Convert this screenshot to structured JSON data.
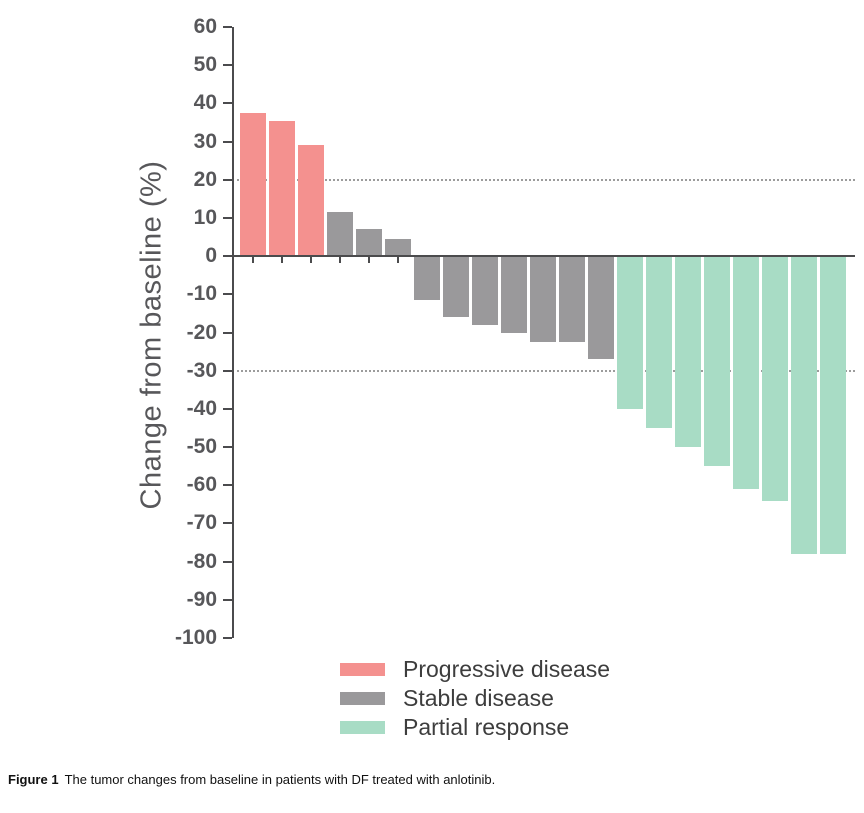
{
  "figure": {
    "caption_label": "Figure 1",
    "caption_text": "The tumor changes from baseline in patients with DF treated with anlotinib."
  },
  "chart_data": {
    "type": "bar",
    "chart_style": "waterfall",
    "title": "",
    "xlabel": "",
    "ylabel": "Change from baseline (%)",
    "ylim": [
      -100,
      60
    ],
    "yticks": [
      60,
      50,
      40,
      30,
      20,
      10,
      0,
      -10,
      -20,
      -30,
      -40,
      -50,
      -60,
      -70,
      -80,
      -90,
      -100
    ],
    "thresholds": [
      20,
      -30
    ],
    "grid": false,
    "legend_position": "bottom",
    "groups": [
      {
        "name": "Progressive disease",
        "color": "#F4918F"
      },
      {
        "name": "Stable disease",
        "color": "#9A999B"
      },
      {
        "name": "Partial response",
        "color": "#A8DCC5"
      }
    ],
    "bars": [
      {
        "value": 37.5,
        "group": "Progressive disease"
      },
      {
        "value": 35.5,
        "group": "Progressive disease"
      },
      {
        "value": 29,
        "group": "Progressive disease"
      },
      {
        "value": 11.5,
        "group": "Stable disease"
      },
      {
        "value": 7,
        "group": "Stable disease"
      },
      {
        "value": 4.5,
        "group": "Stable disease"
      },
      {
        "value": -11.5,
        "group": "Stable disease"
      },
      {
        "value": -16,
        "group": "Stable disease"
      },
      {
        "value": -18,
        "group": "Stable disease"
      },
      {
        "value": -20,
        "group": "Stable disease"
      },
      {
        "value": -22.5,
        "group": "Stable disease"
      },
      {
        "value": -22.5,
        "group": "Stable disease"
      },
      {
        "value": -27,
        "group": "Stable disease"
      },
      {
        "value": -40,
        "group": "Partial response"
      },
      {
        "value": -45,
        "group": "Partial response"
      },
      {
        "value": -50,
        "group": "Partial response"
      },
      {
        "value": -55,
        "group": "Partial response"
      },
      {
        "value": -61,
        "group": "Partial response"
      },
      {
        "value": -64,
        "group": "Partial response"
      },
      {
        "value": -78,
        "group": "Partial response"
      },
      {
        "value": -78,
        "group": "Partial response"
      }
    ]
  }
}
